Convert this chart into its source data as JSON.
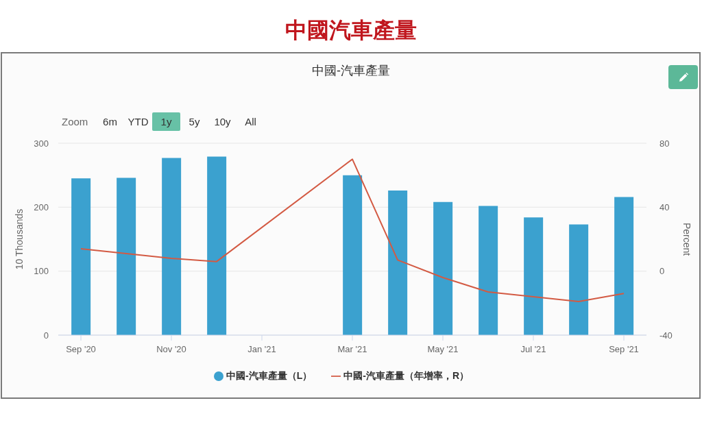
{
  "chart_data": {
    "type": "bar",
    "title": "中國汽車產量",
    "subtitle": "中國-汽車產量",
    "ylabel": "10 Thousands",
    "y2label": "Percent",
    "categories": [
      "Sep '20",
      null,
      "Nov '20",
      null,
      "Jan '21",
      null,
      "Mar '21",
      null,
      "May '21",
      null,
      "Jul '21",
      null,
      "Sep '21"
    ],
    "series": [
      {
        "name": "中國-汽車產量（L）",
        "color": "#3ba1cf",
        "values": [
          245,
          246,
          277,
          279,
          null,
          null,
          250,
          226,
          208,
          202,
          184,
          173,
          216
        ]
      },
      {
        "name": "中國-汽車產量（年增率，R）",
        "type": "line",
        "axis": "y2",
        "color": "#d35a43",
        "values": [
          14,
          11,
          8,
          6,
          null,
          null,
          70,
          7,
          -4,
          -13,
          -16,
          -19,
          -14
        ]
      }
    ],
    "ylim": [
      0,
      300
    ],
    "yticks": [
      0,
      100,
      200,
      300
    ],
    "y2lim": [
      -40,
      80
    ],
    "y2ticks": [
      -40,
      0,
      40,
      80
    ],
    "grid": "y",
    "legend": "bottom",
    "marker": "none",
    "line_style": "solid",
    "annotations": [
      "Zoom",
      "6m",
      "YTD",
      "1y",
      "5y",
      "10y",
      "All"
    ]
  }
}
